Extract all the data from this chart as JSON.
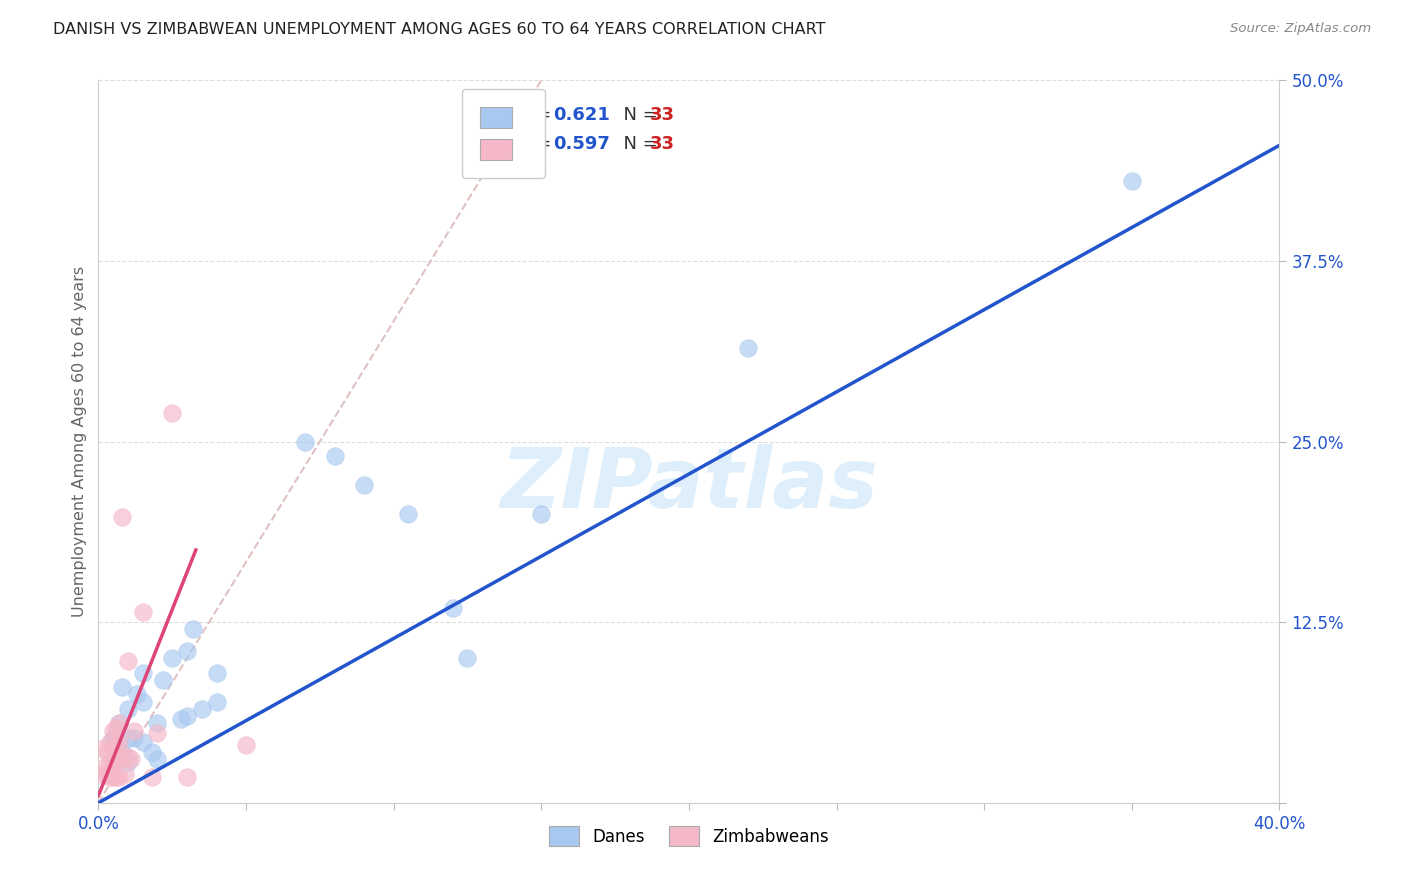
{
  "title": "DANISH VS ZIMBABWEAN UNEMPLOYMENT AMONG AGES 60 TO 64 YEARS CORRELATION CHART",
  "source": "Source: ZipAtlas.com",
  "ylabel": "Unemployment Among Ages 60 to 64 years",
  "xlim": [
    0.0,
    0.4
  ],
  "ylim": [
    0.0,
    0.5
  ],
  "ytick_positions": [
    0.0,
    0.125,
    0.25,
    0.375,
    0.5
  ],
  "ytick_labels": [
    "",
    "12.5%",
    "25.0%",
    "37.5%",
    "50.0%"
  ],
  "xtick_positions": [
    0.0,
    0.05,
    0.1,
    0.15,
    0.2,
    0.25,
    0.3,
    0.35,
    0.4
  ],
  "xtick_labels": [
    "0.0%",
    "",
    "",
    "",
    "",
    "",
    "",
    "",
    "40.0%"
  ],
  "blue_scatter_color": "#a8c8f0",
  "pink_scatter_color": "#f5b8c8",
  "blue_line_color": "#2255cc",
  "pink_line_color": "#dd4477",
  "diag_line_color": "#ddbbbb",
  "legend_blue_r": "0.621",
  "legend_blue_n": "33",
  "legend_pink_r": "0.597",
  "legend_pink_n": "33",
  "r_n_color": "#2255cc",
  "n_value_color": "#cc2222",
  "watermark_text": "ZIPatlas",
  "watermark_color": "#d0e8f8",
  "blue_x": [
    0.005,
    0.007,
    0.008,
    0.008,
    0.01,
    0.01,
    0.01,
    0.012,
    0.013,
    0.015,
    0.015,
    0.015,
    0.018,
    0.02,
    0.02,
    0.022,
    0.025,
    0.028,
    0.03,
    0.03,
    0.032,
    0.035,
    0.04,
    0.04,
    0.07,
    0.08,
    0.09,
    0.105,
    0.12,
    0.125,
    0.15,
    0.22,
    0.35
  ],
  "blue_y": [
    0.045,
    0.055,
    0.035,
    0.08,
    0.028,
    0.045,
    0.065,
    0.045,
    0.075,
    0.042,
    0.07,
    0.09,
    0.035,
    0.03,
    0.055,
    0.085,
    0.1,
    0.058,
    0.06,
    0.105,
    0.12,
    0.065,
    0.07,
    0.09,
    0.25,
    0.24,
    0.22,
    0.2,
    0.135,
    0.1,
    0.2,
    0.315,
    0.43
  ],
  "pink_x": [
    0.001,
    0.002,
    0.002,
    0.003,
    0.003,
    0.004,
    0.004,
    0.004,
    0.005,
    0.005,
    0.005,
    0.005,
    0.006,
    0.006,
    0.006,
    0.006,
    0.007,
    0.007,
    0.007,
    0.007,
    0.008,
    0.008,
    0.009,
    0.01,
    0.01,
    0.011,
    0.012,
    0.015,
    0.018,
    0.02,
    0.025,
    0.03,
    0.05
  ],
  "pink_y": [
    0.02,
    0.025,
    0.038,
    0.02,
    0.035,
    0.018,
    0.028,
    0.042,
    0.018,
    0.028,
    0.038,
    0.05,
    0.018,
    0.03,
    0.04,
    0.052,
    0.018,
    0.03,
    0.042,
    0.055,
    0.032,
    0.198,
    0.02,
    0.032,
    0.098,
    0.03,
    0.05,
    0.132,
    0.018,
    0.048,
    0.27,
    0.018,
    0.04
  ],
  "blue_line_x0": 0.0,
  "blue_line_x1": 0.4,
  "blue_line_y0": 0.0,
  "blue_line_y1": 0.455,
  "pink_line_x0": 0.0,
  "pink_line_x1": 0.033,
  "pink_line_y0": 0.005,
  "pink_line_y1": 0.175
}
